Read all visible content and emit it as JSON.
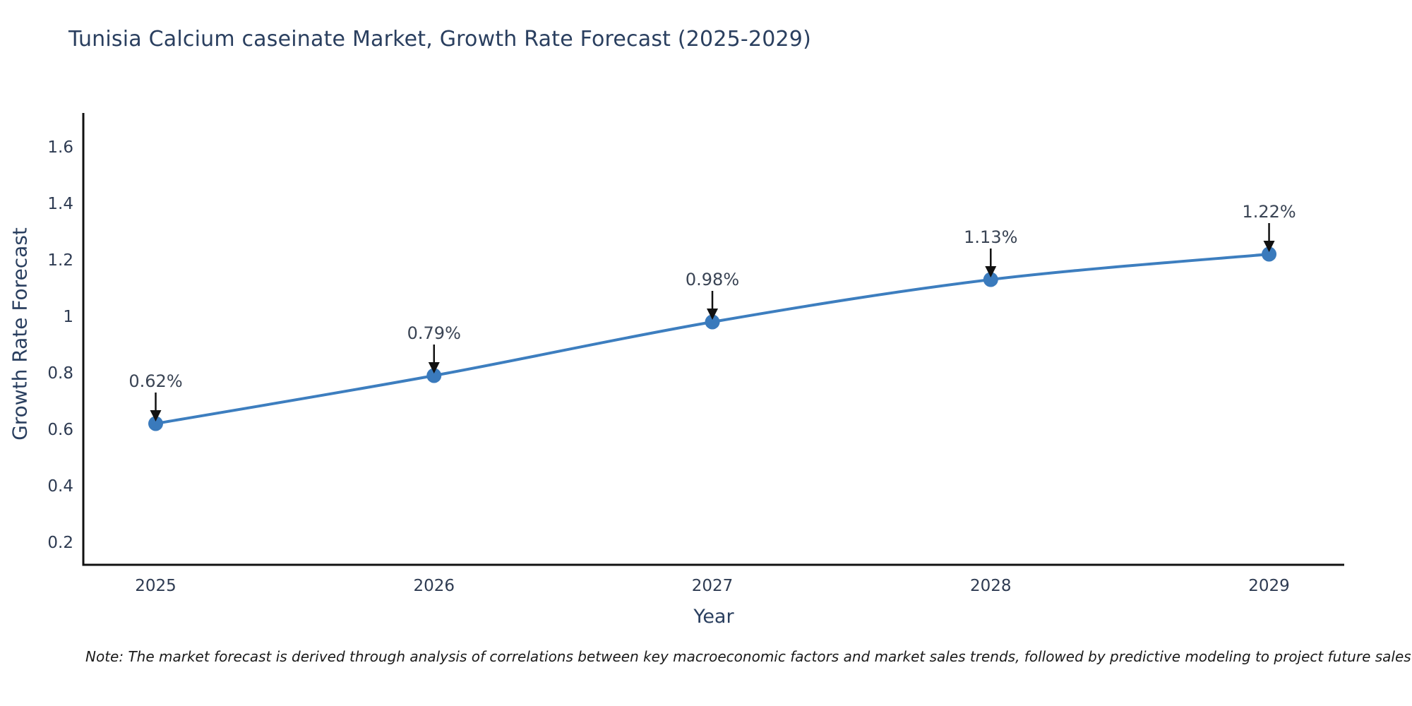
{
  "note": {
    "text": "Note: The market forecast is derived through analysis of correlations between key macroeconomic factors and market sales trends, followed by predictive modeling to project future sales"
  },
  "chart_data": {
    "type": "line",
    "title": "Tunisia Calcium caseinate Market, Growth Rate Forecast (2025-2029)",
    "xlabel": "Year",
    "ylabel": "Growth Rate Forecast",
    "x": [
      2025,
      2026,
      2027,
      2028,
      2029
    ],
    "values": [
      0.62,
      0.79,
      0.98,
      1.13,
      1.22
    ],
    "point_labels": [
      "0.62%",
      "0.79%",
      "0.98%",
      "1.13%",
      "1.22%"
    ],
    "xticks": [
      2025,
      2026,
      2027,
      2028,
      2029
    ],
    "xtick_labels": [
      "2025",
      "2026",
      "2027",
      "2028",
      "2029"
    ],
    "yticks": [
      0.2,
      0.4,
      0.6,
      0.8,
      1.0,
      1.2,
      1.4,
      1.6
    ],
    "ytick_labels": [
      "0.2",
      "0.4",
      "0.6",
      "0.8",
      "1",
      "1.2",
      "1.4",
      "1.6"
    ],
    "xlim": [
      2024.74,
      2029.27
    ],
    "ylim": [
      0.12,
      1.72
    ],
    "grid": false,
    "legend": false,
    "line_shape": "spline",
    "line_color": "#3d7ebf",
    "marker_color": "#3a7abc",
    "axis_color": "#111111",
    "text_color": "#2a3f5f",
    "annotation_arrow_color": "#111111"
  }
}
